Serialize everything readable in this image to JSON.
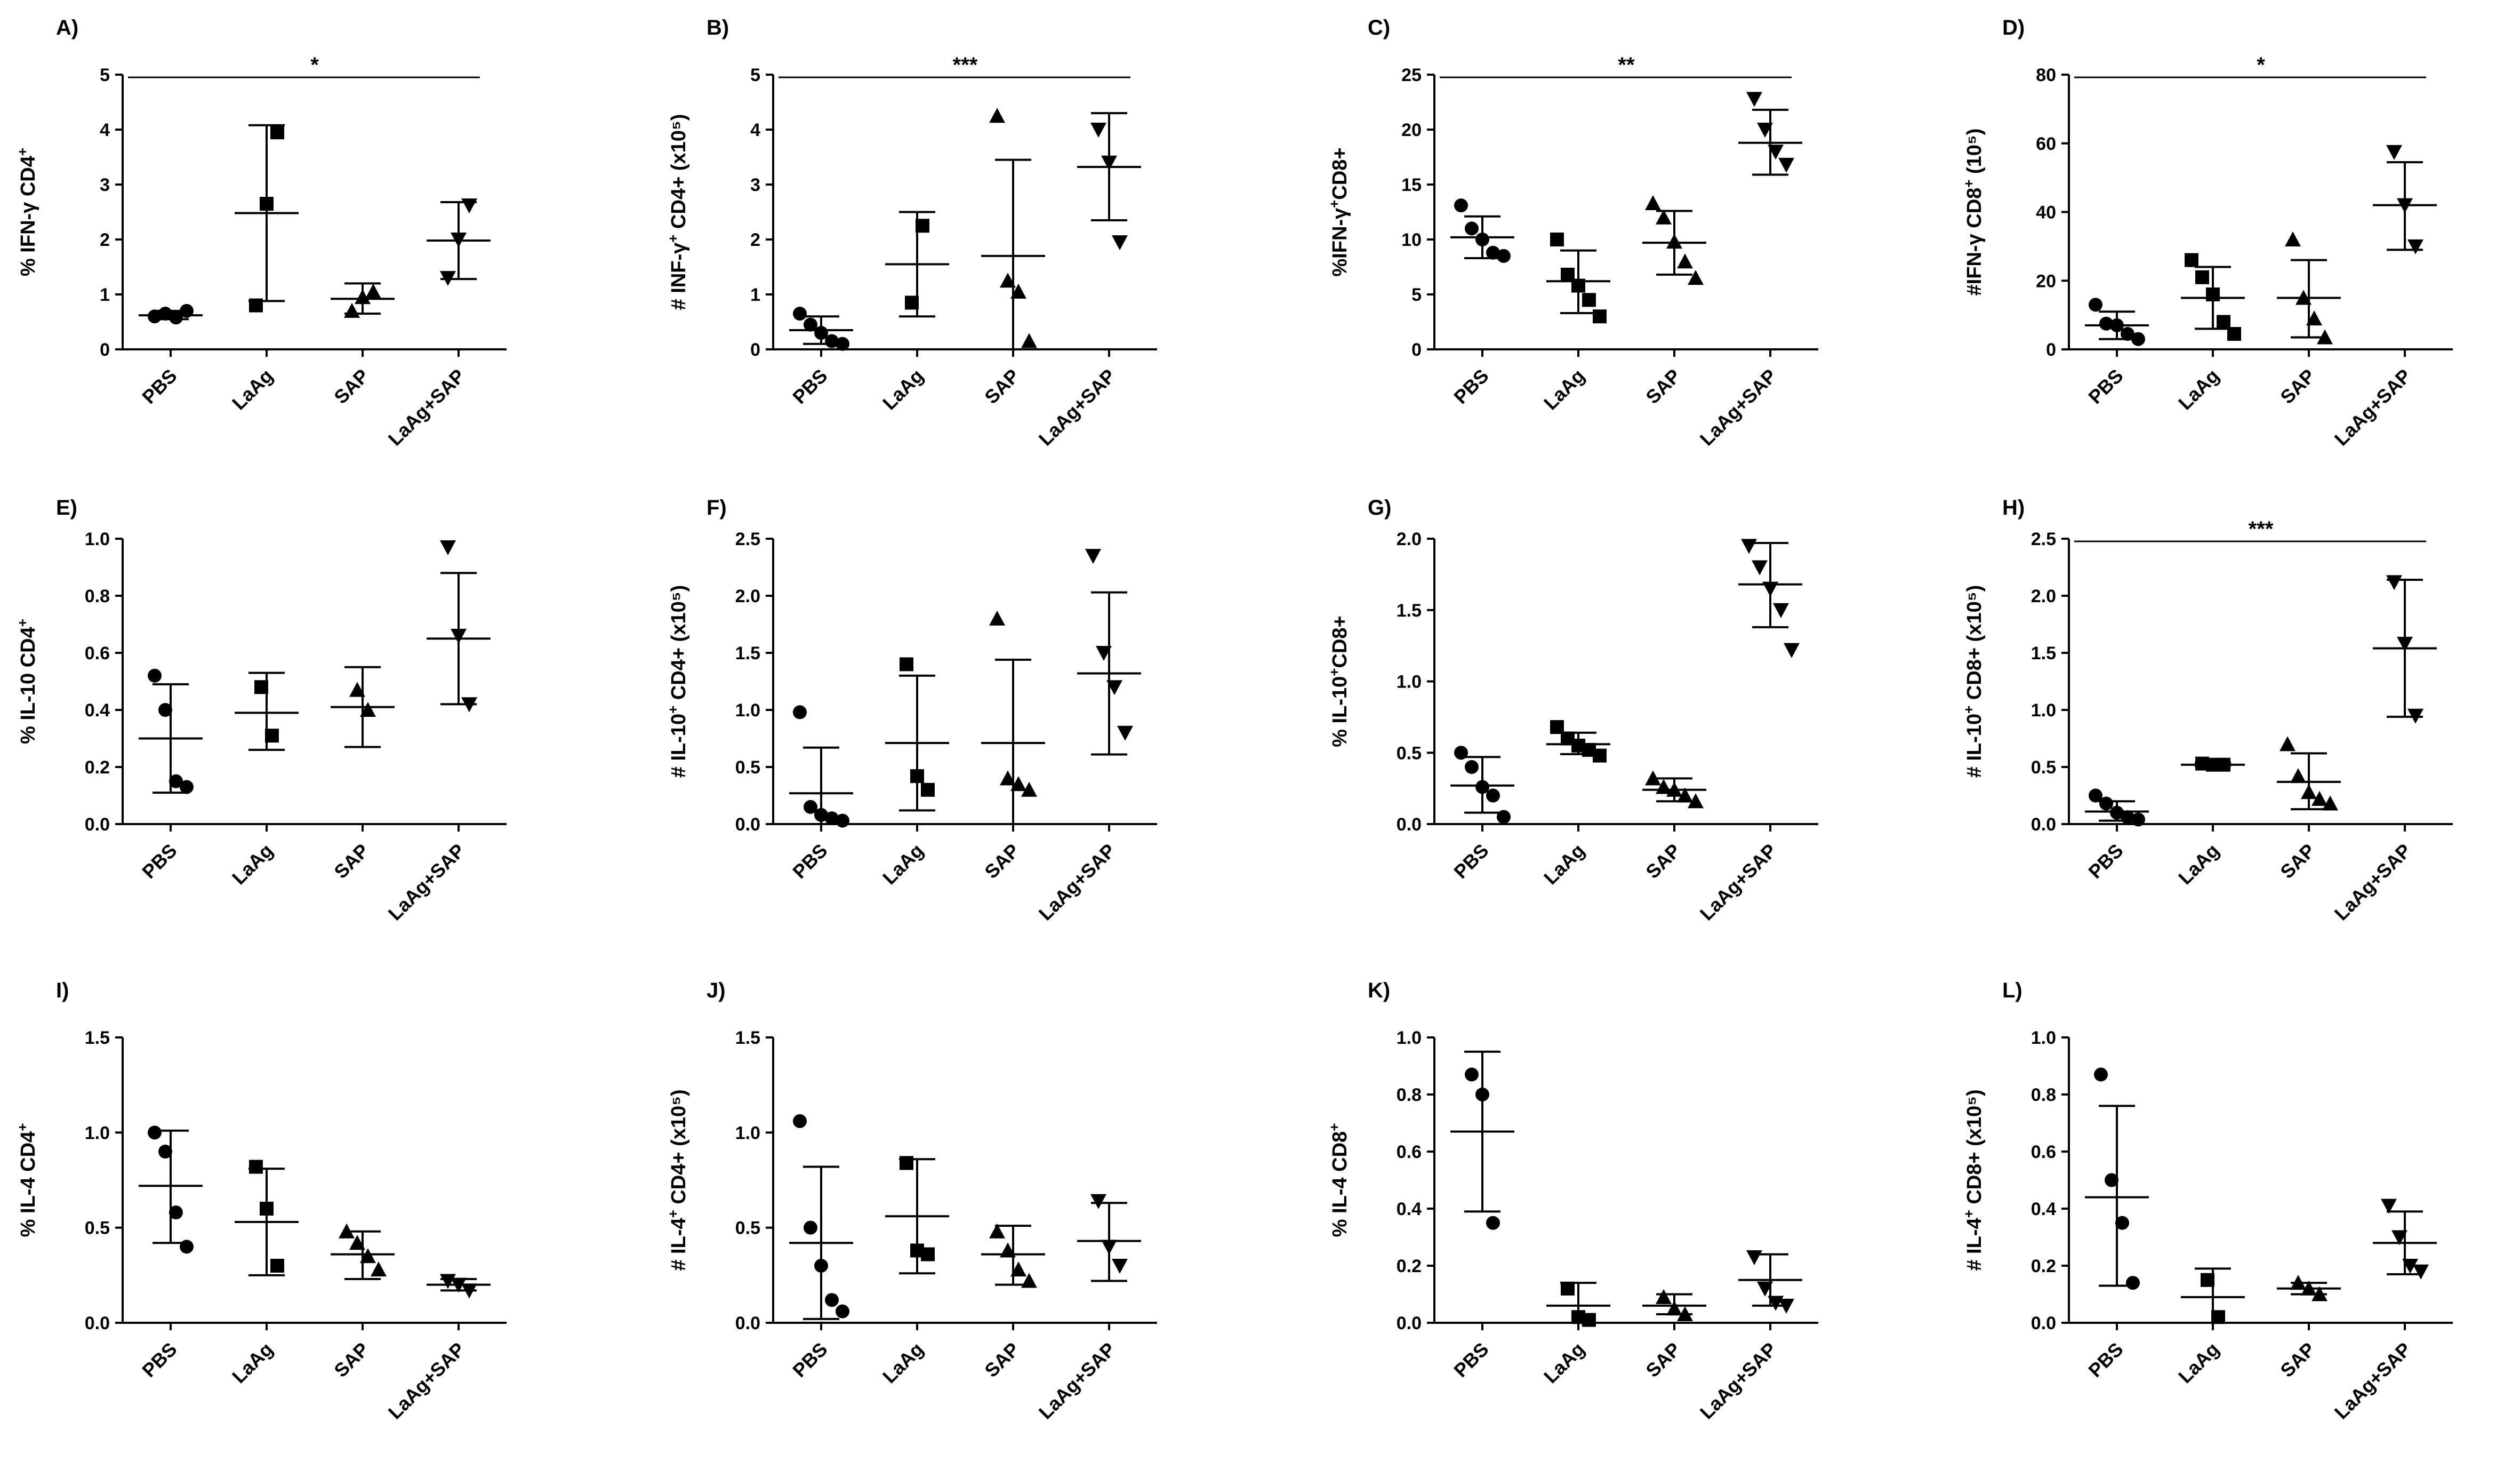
{
  "chart_data": [
    {
      "type": "scatter",
      "panel": "A)",
      "ylabel": "% IFN-γ CD4",
      "ylabel_sup": "+",
      "ylabel_tail": "",
      "ylim": [
        0,
        5
      ],
      "yticks": [
        "0",
        "1",
        "2",
        "3",
        "4",
        "5"
      ],
      "categories": [
        "PBS",
        "LaAg",
        "SAP",
        "LaAg+SAP"
      ],
      "markers": [
        "circle",
        "square",
        "triangle",
        "triangle-down"
      ],
      "groups": [
        {
          "mean": 0.62,
          "sd_low": 0.55,
          "sd_high": 0.7,
          "points": [
            0.6,
            0.65,
            0.58,
            0.7
          ]
        },
        {
          "mean": 2.48,
          "sd_low": 0.88,
          "sd_high": 4.08,
          "points": [
            0.8,
            2.65,
            3.95
          ]
        },
        {
          "mean": 0.92,
          "sd_low": 0.65,
          "sd_high": 1.2,
          "points": [
            0.7,
            0.95,
            1.05
          ]
        },
        {
          "mean": 1.98,
          "sd_low": 1.28,
          "sd_high": 2.68,
          "points": [
            1.3,
            2.0,
            2.62
          ]
        }
      ],
      "significance": "*"
    },
    {
      "type": "scatter",
      "panel": "B)",
      "ylabel": "# INF-γ",
      "ylabel_sup": "+",
      "ylabel_tail": " CD4+ (x10⁵)",
      "ylim": [
        0,
        5
      ],
      "yticks": [
        "0",
        "1",
        "2",
        "3",
        "4",
        "5"
      ],
      "categories": [
        "PBS",
        "LaAg",
        "SAP",
        "LaAg+SAP"
      ],
      "markers": [
        "circle",
        "square",
        "triangle",
        "triangle-down"
      ],
      "groups": [
        {
          "mean": 0.35,
          "sd_low": 0.1,
          "sd_high": 0.6,
          "points": [
            0.65,
            0.45,
            0.3,
            0.15,
            0.1
          ]
        },
        {
          "mean": 1.55,
          "sd_low": 0.6,
          "sd_high": 2.5,
          "points": [
            0.85,
            2.25
          ]
        },
        {
          "mean": 1.7,
          "sd_low": 0.0,
          "sd_high": 3.45,
          "points": [
            4.25,
            1.25,
            1.05,
            0.15
          ]
        },
        {
          "mean": 3.32,
          "sd_low": 2.35,
          "sd_high": 4.3,
          "points": [
            4.0,
            3.4,
            1.95
          ]
        }
      ],
      "significance": "***"
    },
    {
      "type": "scatter",
      "panel": "C)",
      "ylabel": "%IFN-γ",
      "ylabel_sup": "+",
      "ylabel_tail": "CD8+",
      "ylim": [
        0,
        25
      ],
      "yticks": [
        "0",
        "5",
        "10",
        "15",
        "20",
        "25"
      ],
      "categories": [
        "PBS",
        "LaAg",
        "SAP",
        "LaAg+SAP"
      ],
      "markers": [
        "circle",
        "square",
        "triangle",
        "triangle-down"
      ],
      "groups": [
        {
          "mean": 10.2,
          "sd_low": 8.3,
          "sd_high": 12.1,
          "points": [
            13.1,
            11.0,
            10.0,
            8.8,
            8.5
          ]
        },
        {
          "mean": 6.2,
          "sd_low": 3.3,
          "sd_high": 9.0,
          "points": [
            10.0,
            6.8,
            5.8,
            4.5,
            3.0
          ]
        },
        {
          "mean": 9.7,
          "sd_low": 6.8,
          "sd_high": 12.6,
          "points": [
            13.3,
            12.0,
            9.8,
            8.0,
            6.5
          ]
        },
        {
          "mean": 18.8,
          "sd_low": 15.9,
          "sd_high": 21.8,
          "points": [
            22.8,
            20.0,
            18.0,
            16.8
          ]
        }
      ],
      "significance": "**"
    },
    {
      "type": "scatter",
      "panel": "D)",
      "ylabel": "#IFN-γ CD8",
      "ylabel_sup": "+",
      "ylabel_tail": " (10⁵)",
      "ylim": [
        0,
        80
      ],
      "yticks": [
        "0",
        "20",
        "40",
        "60",
        "80"
      ],
      "categories": [
        "PBS",
        "LaAg",
        "SAP",
        "LaAg+SAP"
      ],
      "markers": [
        "circle",
        "square",
        "triangle",
        "triangle-down"
      ],
      "groups": [
        {
          "mean": 7.0,
          "sd_low": 3.0,
          "sd_high": 11.0,
          "points": [
            13.0,
            7.5,
            7.0,
            4.5,
            3.0
          ]
        },
        {
          "mean": 15.0,
          "sd_low": 6.0,
          "sd_high": 24.0,
          "points": [
            26.0,
            21.0,
            16.0,
            8.0,
            4.5
          ]
        },
        {
          "mean": 15.0,
          "sd_low": 3.5,
          "sd_high": 26.0,
          "points": [
            32.0,
            15.0,
            9.0,
            3.5
          ]
        },
        {
          "mean": 42.0,
          "sd_low": 29.0,
          "sd_high": 54.5,
          "points": [
            57.5,
            42.0,
            30.0
          ]
        }
      ],
      "significance": "*"
    },
    {
      "type": "scatter",
      "panel": "E)",
      "ylabel": "% IL-10 CD4",
      "ylabel_sup": "+",
      "ylabel_tail": "",
      "ylim": [
        0,
        1.0
      ],
      "yticks": [
        "0.0",
        "0.2",
        "0.4",
        "0.6",
        "0.8",
        "1.0"
      ],
      "categories": [
        "PBS",
        "LaAg",
        "SAP",
        "LaAg+SAP"
      ],
      "markers": [
        "circle",
        "square",
        "triangle",
        "triangle-down"
      ],
      "groups": [
        {
          "mean": 0.3,
          "sd_low": 0.11,
          "sd_high": 0.49,
          "points": [
            0.52,
            0.4,
            0.15,
            0.13
          ]
        },
        {
          "mean": 0.39,
          "sd_low": 0.26,
          "sd_high": 0.53,
          "points": [
            0.48,
            0.31
          ]
        },
        {
          "mean": 0.41,
          "sd_low": 0.27,
          "sd_high": 0.55,
          "points": [
            0.47,
            0.4
          ]
        },
        {
          "mean": 0.65,
          "sd_low": 0.42,
          "sd_high": 0.88,
          "points": [
            0.97,
            0.66,
            0.42
          ]
        }
      ],
      "significance": ""
    },
    {
      "type": "scatter",
      "panel": "F)",
      "ylabel": "# IL-10",
      "ylabel_sup": "+",
      "ylabel_tail": " CD4+ (x10⁵)",
      "ylim": [
        0,
        2.5
      ],
      "yticks": [
        "0.0",
        "0.5",
        "1.0",
        "1.5",
        "2.0",
        "2.5"
      ],
      "categories": [
        "PBS",
        "LaAg",
        "SAP",
        "LaAg+SAP"
      ],
      "markers": [
        "circle",
        "square",
        "triangle",
        "triangle-down"
      ],
      "groups": [
        {
          "mean": 0.27,
          "sd_low": 0.0,
          "sd_high": 0.67,
          "points": [
            0.98,
            0.15,
            0.08,
            0.05,
            0.03
          ]
        },
        {
          "mean": 0.71,
          "sd_low": 0.12,
          "sd_high": 1.3,
          "points": [
            1.4,
            0.42,
            0.3
          ]
        },
        {
          "mean": 0.71,
          "sd_low": 0.0,
          "sd_high": 1.44,
          "points": [
            1.8,
            0.4,
            0.35,
            0.3
          ]
        },
        {
          "mean": 1.32,
          "sd_low": 0.61,
          "sd_high": 2.03,
          "points": [
            2.35,
            1.5,
            1.2,
            0.8
          ]
        }
      ],
      "significance": ""
    },
    {
      "type": "scatter",
      "panel": "G)",
      "ylabel": "% IL-10",
      "ylabel_sup": "+",
      "ylabel_tail": "CD8+",
      "ylim": [
        0,
        2.0
      ],
      "yticks": [
        "0.0",
        "0.5",
        "1.0",
        "1.5",
        "2.0"
      ],
      "categories": [
        "PBS",
        "LaAg",
        "SAP",
        "LaAg+SAP"
      ],
      "markers": [
        "circle",
        "square",
        "triangle",
        "triangle-down"
      ],
      "groups": [
        {
          "mean": 0.27,
          "sd_low": 0.08,
          "sd_high": 0.47,
          "points": [
            0.5,
            0.4,
            0.26,
            0.2,
            0.05
          ]
        },
        {
          "mean": 0.56,
          "sd_low": 0.49,
          "sd_high": 0.64,
          "points": [
            0.68,
            0.6,
            0.55,
            0.52,
            0.48
          ]
        },
        {
          "mean": 0.24,
          "sd_low": 0.16,
          "sd_high": 0.32,
          "points": [
            0.32,
            0.26,
            0.24,
            0.2,
            0.16
          ]
        },
        {
          "mean": 1.68,
          "sd_low": 1.38,
          "sd_high": 1.97,
          "points": [
            1.95,
            1.8,
            1.65,
            1.5,
            1.22
          ]
        }
      ],
      "significance": ""
    },
    {
      "type": "scatter",
      "panel": "H)",
      "ylabel": "# IL-10",
      "ylabel_sup": "+",
      "ylabel_tail": " CD8+ (x10⁵)",
      "ylim": [
        0,
        2.5
      ],
      "yticks": [
        "0.0",
        "0.5",
        "1.0",
        "1.5",
        "2.0",
        "2.5"
      ],
      "categories": [
        "PBS",
        "LaAg",
        "SAP",
        "LaAg+SAP"
      ],
      "markers": [
        "circle",
        "square",
        "triangle",
        "triangle-down"
      ],
      "groups": [
        {
          "mean": 0.11,
          "sd_low": 0.03,
          "sd_high": 0.2,
          "points": [
            0.25,
            0.18,
            0.1,
            0.06,
            0.04
          ]
        },
        {
          "mean": 0.52,
          "sd_low": 0.51,
          "sd_high": 0.54,
          "points": [
            0.53,
            0.52,
            0.52
          ]
        },
        {
          "mean": 0.37,
          "sd_low": 0.13,
          "sd_high": 0.62,
          "points": [
            0.7,
            0.42,
            0.28,
            0.22,
            0.18
          ]
        },
        {
          "mean": 1.54,
          "sd_low": 0.94,
          "sd_high": 2.14,
          "points": [
            2.12,
            1.58,
            0.95
          ]
        }
      ],
      "significance": "***"
    },
    {
      "type": "scatter",
      "panel": "I)",
      "ylabel": "% IL-4 CD4",
      "ylabel_sup": "+",
      "ylabel_tail": "",
      "ylim": [
        0,
        1.5
      ],
      "yticks": [
        "0.0",
        "0.5",
        "1.0",
        "1.5"
      ],
      "categories": [
        "PBS",
        "LaAg",
        "SAP",
        "LaAg+SAP"
      ],
      "markers": [
        "circle",
        "square",
        "triangle",
        "triangle-down"
      ],
      "groups": [
        {
          "mean": 0.72,
          "sd_low": 0.42,
          "sd_high": 1.01,
          "points": [
            1.0,
            0.9,
            0.58,
            0.4
          ]
        },
        {
          "mean": 0.53,
          "sd_low": 0.25,
          "sd_high": 0.81,
          "points": [
            0.82,
            0.6,
            0.3
          ]
        },
        {
          "mean": 0.36,
          "sd_low": 0.23,
          "sd_high": 0.48,
          "points": [
            0.48,
            0.42,
            0.35,
            0.28
          ]
        },
        {
          "mean": 0.2,
          "sd_low": 0.17,
          "sd_high": 0.23,
          "points": [
            0.22,
            0.2,
            0.17
          ]
        }
      ],
      "significance": ""
    },
    {
      "type": "scatter",
      "panel": "J)",
      "ylabel": "# IL-4",
      "ylabel_sup": "+",
      "ylabel_tail": " CD4+ (x10⁵)",
      "ylim": [
        0,
        1.5
      ],
      "yticks": [
        "0.0",
        "0.5",
        "1.0",
        "1.5"
      ],
      "categories": [
        "PBS",
        "LaAg",
        "SAP",
        "LaAg+SAP"
      ],
      "markers": [
        "circle",
        "square",
        "triangle",
        "triangle-down"
      ],
      "groups": [
        {
          "mean": 0.42,
          "sd_low": 0.02,
          "sd_high": 0.82,
          "points": [
            1.06,
            0.5,
            0.3,
            0.12,
            0.06
          ]
        },
        {
          "mean": 0.56,
          "sd_low": 0.26,
          "sd_high": 0.86,
          "points": [
            0.84,
            0.38,
            0.36
          ]
        },
        {
          "mean": 0.36,
          "sd_low": 0.2,
          "sd_high": 0.51,
          "points": [
            0.48,
            0.38,
            0.28,
            0.22
          ]
        },
        {
          "mean": 0.43,
          "sd_low": 0.22,
          "sd_high": 0.63,
          "points": [
            0.64,
            0.4,
            0.3
          ]
        }
      ],
      "significance": ""
    },
    {
      "type": "scatter",
      "panel": "K)",
      "ylabel": "% IL-4 CD8",
      "ylabel_sup": "+",
      "ylabel_tail": "",
      "ylim": [
        0,
        1.0
      ],
      "yticks": [
        "0.0",
        "0.2",
        "0.4",
        "0.6",
        "0.8",
        "1.0"
      ],
      "categories": [
        "PBS",
        "LaAg",
        "SAP",
        "LaAg+SAP"
      ],
      "markers": [
        "circle",
        "square",
        "triangle",
        "triangle-down"
      ],
      "groups": [
        {
          "mean": 0.67,
          "sd_low": 0.39,
          "sd_high": 0.95,
          "points": [
            0.87,
            0.8,
            0.35
          ]
        },
        {
          "mean": 0.06,
          "sd_low": 0.0,
          "sd_high": 0.14,
          "points": [
            0.12,
            0.02,
            0.01
          ]
        },
        {
          "mean": 0.06,
          "sd_low": 0.03,
          "sd_high": 0.1,
          "points": [
            0.09,
            0.05,
            0.03
          ]
        },
        {
          "mean": 0.15,
          "sd_low": 0.06,
          "sd_high": 0.24,
          "points": [
            0.23,
            0.12,
            0.07,
            0.06
          ]
        }
      ],
      "significance": ""
    },
    {
      "type": "scatter",
      "panel": "L)",
      "ylabel": "# IL-4",
      "ylabel_sup": "+",
      "ylabel_tail": " CD8+ (x10⁵)",
      "ylim": [
        0,
        1.0
      ],
      "yticks": [
        "0.0",
        "0.2",
        "0.4",
        "0.6",
        "0.8",
        "1.0"
      ],
      "categories": [
        "PBS",
        "LaAg",
        "SAP",
        "LaAg+SAP"
      ],
      "markers": [
        "circle",
        "square",
        "triangle",
        "triangle-down"
      ],
      "groups": [
        {
          "mean": 0.44,
          "sd_low": 0.13,
          "sd_high": 0.76,
          "points": [
            0.87,
            0.5,
            0.35,
            0.14
          ]
        },
        {
          "mean": 0.09,
          "sd_low": 0.0,
          "sd_high": 0.19,
          "points": [
            0.15,
            0.02
          ]
        },
        {
          "mean": 0.12,
          "sd_low": 0.1,
          "sd_high": 0.14,
          "points": [
            0.14,
            0.12,
            0.1
          ]
        },
        {
          "mean": 0.28,
          "sd_low": 0.17,
          "sd_high": 0.39,
          "points": [
            0.41,
            0.3,
            0.2,
            0.18
          ]
        }
      ],
      "significance": ""
    }
  ]
}
